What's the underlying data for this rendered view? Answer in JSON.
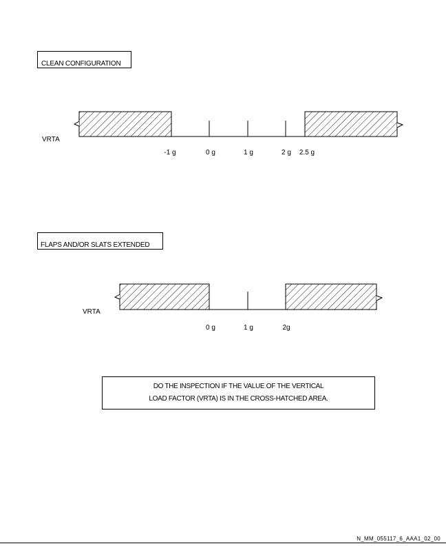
{
  "clean": {
    "title": "CLEAN CONFIGURATION",
    "axis_label": "VRTA",
    "ticks": [
      {
        "label": "-1 g",
        "value": -1
      },
      {
        "label": "0 g",
        "value": 0
      },
      {
        "label": "1 g",
        "value": 1
      },
      {
        "label": "2 g",
        "value": 2
      },
      {
        "label": "2.5 g",
        "value": 2.5
      }
    ],
    "hatched_ranges": [
      {
        "from": "below -1 g",
        "to": -1
      },
      {
        "from": 2.5,
        "to": "above 2.5 g"
      }
    ]
  },
  "flaps": {
    "title": "FLAPS AND/OR SLATS EXTENDED",
    "axis_label": "VRTA",
    "ticks": [
      {
        "label": "0 g",
        "value": 0
      },
      {
        "label": "1 g",
        "value": 1
      },
      {
        "label": "2g",
        "value": 2
      }
    ],
    "hatched_ranges": [
      {
        "from": "below 0 g",
        "to": 0
      },
      {
        "from": 2,
        "to": "above 2 g"
      }
    ]
  },
  "note": {
    "line1": "DO THE INSPECTION IF THE VALUE OF THE VERTICAL",
    "line2": "LOAD FACTOR (VRTA) IS IN THE CROSS-HATCHED AREA."
  },
  "footer": {
    "code": "N_MM_055117_6_AAA1_02_00"
  }
}
